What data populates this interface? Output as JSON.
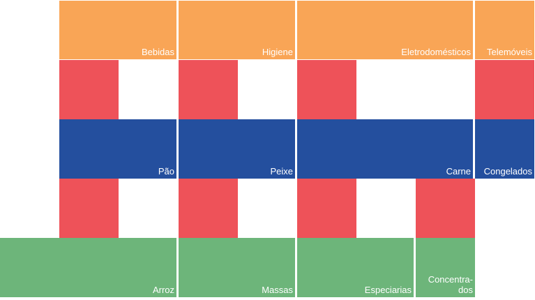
{
  "colors": {
    "orange": "#f9a556",
    "red": "#ee5259",
    "blue": "#244f9e",
    "green": "#6db57a"
  },
  "rows": {
    "orange": [
      "Bebidas",
      "Higiene",
      "Eletrodomésticos",
      "Telemóveis"
    ],
    "blue": [
      "Pão",
      "Peixe",
      "Carne",
      "Congelados"
    ],
    "green": [
      "Arroz",
      "Massas",
      "Especiarias",
      "Concentra-dos"
    ]
  }
}
